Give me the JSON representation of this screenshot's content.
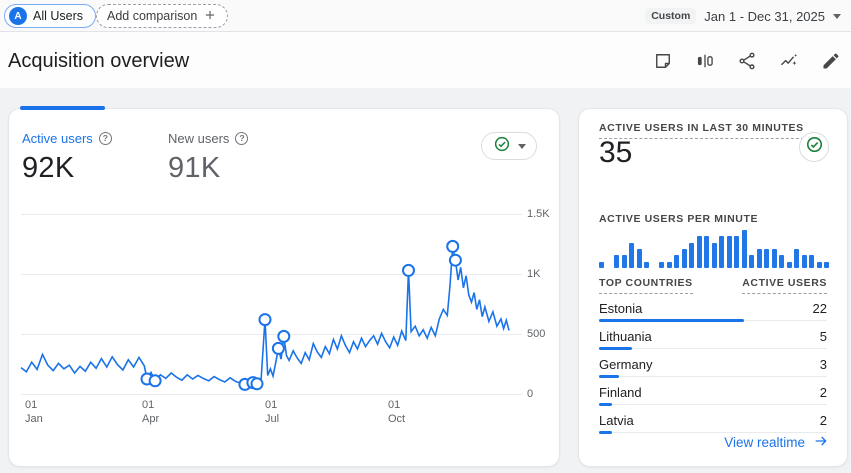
{
  "header": {
    "audience_chip": {
      "avatar_letter": "A",
      "label": "All Users"
    },
    "add_comparison_label": "Add comparison",
    "date_range": {
      "badge": "Custom",
      "label": "Jan 1 - Dec 31, 2025"
    }
  },
  "page": {
    "title": "Acquisition overview"
  },
  "toolbar": {
    "icons": [
      "note",
      "comparison",
      "share",
      "insights",
      "edit"
    ]
  },
  "glyphs": {
    "help": "?"
  },
  "colors": {
    "accent": "#1a73e8",
    "bar_blue": "#2277e8",
    "green": "#188038",
    "text_dark": "#202124",
    "text_gray": "#5f6368"
  },
  "overview_card": {
    "metrics": [
      {
        "label": "Active users",
        "value": "92K",
        "active": true
      },
      {
        "label": "New users",
        "value": "91K",
        "active": false
      }
    ]
  },
  "chart_data": [
    {
      "type": "line",
      "title": "Active users over time",
      "legend_position": "none",
      "grid": "horizontal",
      "x_range": [
        "Jan 1, 2025",
        "Dec 31, 2025"
      ],
      "ylim": [
        0,
        1500
      ],
      "y_tick_labels": [
        "1.5K",
        "1K",
        "500",
        "0"
      ],
      "x_tick_labels": [
        {
          "l1": "01",
          "l2": "Jan"
        },
        {
          "l1": "01",
          "l2": "Apr"
        },
        {
          "l1": "01",
          "l2": "Jul"
        },
        {
          "l1": "01",
          "l2": "Oct"
        }
      ],
      "series": [
        {
          "name": "Active users",
          "points": [
            [
              0,
              220
            ],
            [
              4,
              185
            ],
            [
              8,
              265
            ],
            [
              12,
              205
            ],
            [
              16,
              330
            ],
            [
              20,
              240
            ],
            [
              24,
              195
            ],
            [
              28,
              255
            ],
            [
              32,
              210
            ],
            [
              36,
              240
            ],
            [
              40,
              175
            ],
            [
              44,
              230
            ],
            [
              48,
              190
            ],
            [
              52,
              265
            ],
            [
              56,
              215
            ],
            [
              60,
              295
            ],
            [
              64,
              225
            ],
            [
              68,
              310
            ],
            [
              72,
              245
            ],
            [
              76,
              200
            ],
            [
              80,
              285
            ],
            [
              84,
              225
            ],
            [
              88,
              305
            ],
            [
              92,
              235
            ],
            [
              94,
              125
            ],
            [
              97,
              180
            ],
            [
              100,
              110
            ],
            [
              104,
              160
            ],
            [
              108,
              130
            ],
            [
              112,
              175
            ],
            [
              116,
              140
            ],
            [
              120,
              115
            ],
            [
              124,
              160
            ],
            [
              128,
              125
            ],
            [
              132,
              155
            ],
            [
              136,
              130
            ],
            [
              140,
              110
            ],
            [
              144,
              145
            ],
            [
              148,
              120
            ],
            [
              152,
              100
            ],
            [
              156,
              135
            ],
            [
              160,
              105
            ],
            [
              164,
              90
            ],
            [
              167,
              80
            ],
            [
              170,
              120
            ],
            [
              173,
              95
            ],
            [
              176,
              85
            ],
            [
              179,
              110
            ],
            [
              182,
              620
            ],
            [
              184,
              155
            ],
            [
              186,
              210
            ],
            [
              188,
              150
            ],
            [
              190,
              260
            ],
            [
              192,
              380
            ],
            [
              194,
              290
            ],
            [
              196,
              480
            ],
            [
              198,
              320
            ],
            [
              200,
              280
            ],
            [
              203,
              360
            ],
            [
              206,
              300
            ],
            [
              209,
              255
            ],
            [
              212,
              345
            ],
            [
              215,
              285
            ],
            [
              218,
              420
            ],
            [
              221,
              350
            ],
            [
              224,
              305
            ],
            [
              227,
              395
            ],
            [
              230,
              335
            ],
            [
              233,
              455
            ],
            [
              236,
              375
            ],
            [
              239,
              485
            ],
            [
              242,
              405
            ],
            [
              245,
              345
            ],
            [
              248,
              435
            ],
            [
              251,
              375
            ],
            [
              254,
              465
            ],
            [
              257,
              395
            ],
            [
              260,
              445
            ],
            [
              263,
              485
            ],
            [
              266,
              415
            ],
            [
              269,
              505
            ],
            [
              272,
              435
            ],
            [
              275,
              385
            ],
            [
              278,
              475
            ],
            [
              281,
              405
            ],
            [
              284,
              525
            ],
            [
              287,
              445
            ],
            [
              289,
              1030
            ],
            [
              291,
              520
            ],
            [
              294,
              565
            ],
            [
              297,
              485
            ],
            [
              300,
              535
            ],
            [
              303,
              465
            ],
            [
              306,
              555
            ],
            [
              309,
              485
            ],
            [
              312,
              625
            ],
            [
              315,
              705
            ],
            [
              318,
              655
            ],
            [
              320,
              905
            ],
            [
              322,
              1230
            ],
            [
              324,
              1115
            ],
            [
              326,
              950
            ],
            [
              328,
              1055
            ],
            [
              330,
              885
            ],
            [
              332,
              985
            ],
            [
              334,
              825
            ],
            [
              336,
              765
            ],
            [
              338,
              845
            ],
            [
              340,
              705
            ],
            [
              342,
              785
            ],
            [
              344,
              645
            ],
            [
              346,
              725
            ],
            [
              349,
              605
            ],
            [
              352,
              685
            ],
            [
              355,
              565
            ],
            [
              358,
              625
            ],
            [
              360,
              545
            ],
            [
              362,
              615
            ],
            [
              364,
              530
            ]
          ]
        }
      ],
      "anomaly_days": [
        94,
        100,
        167,
        173,
        176,
        182,
        192,
        196,
        289,
        322,
        324
      ]
    },
    {
      "type": "bar",
      "title": "Active users per minute",
      "x": "last 30 minutes",
      "ylim": [
        0,
        6
      ],
      "values": [
        1,
        0,
        2,
        2,
        4,
        3,
        1,
        0,
        1,
        1,
        2,
        3,
        4,
        5,
        5,
        4,
        5,
        5,
        5,
        6,
        2,
        3,
        3,
        3,
        2,
        1,
        3,
        2,
        2,
        1,
        1
      ]
    }
  ],
  "realtime_card": {
    "title": "ACTIVE USERS IN LAST 30 MINUTES",
    "value": "35",
    "per_minute_title": "ACTIVE USERS PER MINUTE",
    "countries_header": {
      "country": "TOP COUNTRIES",
      "users": "ACTIVE USERS"
    },
    "countries": [
      {
        "name": "Estonia",
        "users": 22
      },
      {
        "name": "Lithuania",
        "users": 5
      },
      {
        "name": "Germany",
        "users": 3
      },
      {
        "name": "Finland",
        "users": 2
      },
      {
        "name": "Latvia",
        "users": 2
      }
    ],
    "view_realtime_label": "View realtime"
  }
}
